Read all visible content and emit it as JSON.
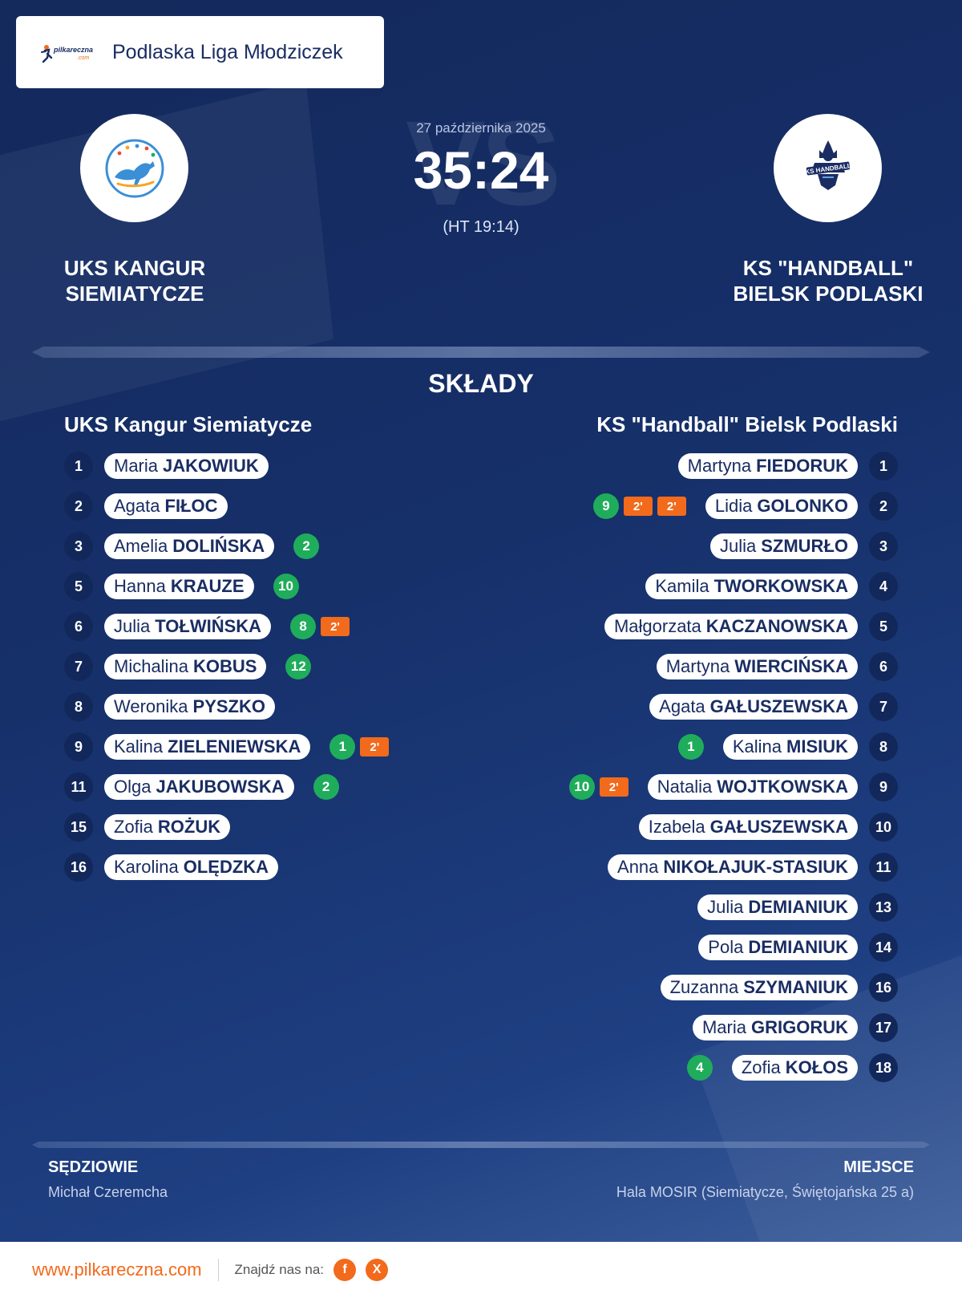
{
  "header": {
    "logo_text": "pilkareczna.com",
    "league": "Podlaska Liga Młodziczek"
  },
  "match": {
    "date": "27 października 2025",
    "score": "35:24",
    "halftime": "(HT 19:14)",
    "vs": "VS"
  },
  "home_team": {
    "name_line1": "UKS KANGUR",
    "name_line2": "SIEMIATYCZE",
    "lineup_title": "UKS Kangur Siemiatycze",
    "logo_icon": "kangaroo-logo-icon",
    "players": [
      {
        "number": "1",
        "first": "Maria",
        "last": "JAKOWIUK",
        "goals": null,
        "penalties": []
      },
      {
        "number": "2",
        "first": "Agata",
        "last": "FIŁOC",
        "goals": null,
        "penalties": []
      },
      {
        "number": "3",
        "first": "Amelia",
        "last": "DOLIŃSKA",
        "goals": "2",
        "penalties": []
      },
      {
        "number": "5",
        "first": "Hanna",
        "last": "KRAUZE",
        "goals": "10",
        "penalties": []
      },
      {
        "number": "6",
        "first": "Julia",
        "last": "TOŁWIŃSKA",
        "goals": "8",
        "penalties": [
          "2'"
        ]
      },
      {
        "number": "7",
        "first": "Michalina",
        "last": "KOBUS",
        "goals": "12",
        "penalties": []
      },
      {
        "number": "8",
        "first": "Weronika",
        "last": "PYSZKO",
        "goals": null,
        "penalties": []
      },
      {
        "number": "9",
        "first": "Kalina",
        "last": "ZIELENIEWSKA",
        "goals": "1",
        "penalties": [
          "2'"
        ]
      },
      {
        "number": "11",
        "first": "Olga",
        "last": "JAKUBOWSKA",
        "goals": "2",
        "penalties": []
      },
      {
        "number": "15",
        "first": "Zofia",
        "last": "ROŻUK",
        "goals": null,
        "penalties": []
      },
      {
        "number": "16",
        "first": "Karolina",
        "last": "OLĘDZKA",
        "goals": null,
        "penalties": []
      }
    ]
  },
  "away_team": {
    "name_line1": "KS \"HANDBALL\"",
    "name_line2": "BIELSK PODLASKI",
    "lineup_title": "KS \"Handball\" Bielsk Podlaski",
    "logo_icon": "ks-handball-logo-icon",
    "logo_text": "KS HANDBALL",
    "players": [
      {
        "number": "1",
        "first": "Martyna",
        "last": "FIEDORUK",
        "goals": null,
        "penalties": []
      },
      {
        "number": "2",
        "first": "Lidia",
        "last": "GOLONKO",
        "goals": "9",
        "penalties": [
          "2'",
          "2'"
        ]
      },
      {
        "number": "3",
        "first": "Julia",
        "last": "SZMURŁO",
        "goals": null,
        "penalties": []
      },
      {
        "number": "4",
        "first": "Kamila",
        "last": "TWORKOWSKA",
        "goals": null,
        "penalties": []
      },
      {
        "number": "5",
        "first": "Małgorzata",
        "last": "KACZANOWSKA",
        "goals": null,
        "penalties": []
      },
      {
        "number": "6",
        "first": "Martyna",
        "last": "WIERCIŃSKA",
        "goals": null,
        "penalties": []
      },
      {
        "number": "7",
        "first": "Agata",
        "last": "GAŁUSZEWSKA",
        "goals": null,
        "penalties": []
      },
      {
        "number": "8",
        "first": "Kalina",
        "last": "MISIUK",
        "goals": "1",
        "penalties": []
      },
      {
        "number": "9",
        "first": "Natalia",
        "last": "WOJTKOWSKA",
        "goals": "10",
        "penalties": [
          "2'"
        ]
      },
      {
        "number": "10",
        "first": "Izabela",
        "last": "GAŁUSZEWSKA",
        "goals": null,
        "penalties": []
      },
      {
        "number": "11",
        "first": "Anna",
        "last": "NIKOŁAJUK-STASIUK",
        "goals": null,
        "penalties": []
      },
      {
        "number": "13",
        "first": "Julia",
        "last": "DEMIANIUK",
        "goals": null,
        "penalties": []
      },
      {
        "number": "14",
        "first": "Pola",
        "last": "DEMIANIUK",
        "goals": null,
        "penalties": []
      },
      {
        "number": "16",
        "first": "Zuzanna",
        "last": "SZYMANIUK",
        "goals": null,
        "penalties": []
      },
      {
        "number": "17",
        "first": "Maria",
        "last": "GRIGORUK",
        "goals": null,
        "penalties": []
      },
      {
        "number": "18",
        "first": "Zofia",
        "last": "KOŁOS",
        "goals": "4",
        "penalties": []
      }
    ]
  },
  "section_title": "SKŁADY",
  "officials": {
    "referees_label": "SĘDZIOWIE",
    "referees_value": "Michał Czeremcha",
    "venue_label": "MIEJSCE",
    "venue_value": "Hala MOSIR (Siemiatycze, Świętojańska 25 a)"
  },
  "footer": {
    "url": "www.pilkareczna.com",
    "find_us": "Znajdź nas na:",
    "social": [
      {
        "icon": "facebook-icon",
        "glyph": "f"
      },
      {
        "icon": "x-icon",
        "glyph": "X"
      }
    ]
  },
  "colors": {
    "background": "#16306a",
    "goal": "#1fad5b",
    "penalty": "#f26a1b",
    "accent": "#f26a1b",
    "text_dark": "#1a2d63"
  }
}
